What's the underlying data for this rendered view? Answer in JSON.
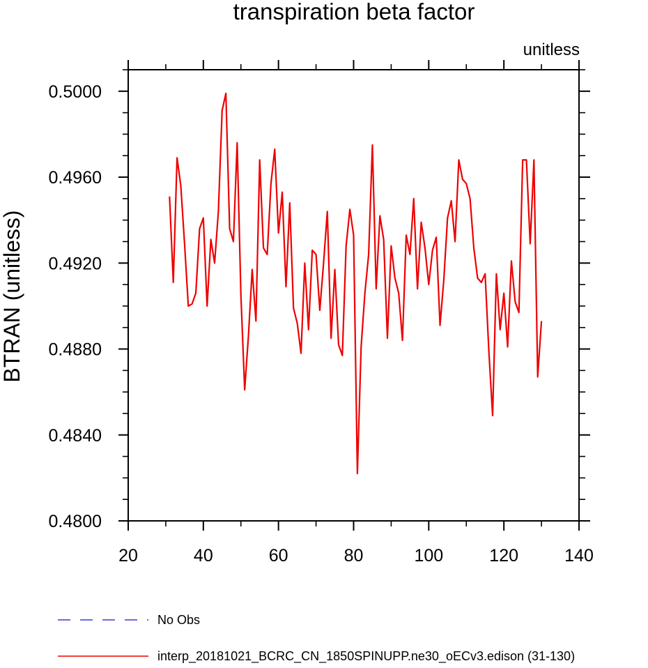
{
  "chart_data": {
    "type": "line",
    "title": "transpiration beta factor",
    "units": "unitless",
    "ylabel": "BTRAN  (unitless)",
    "xlabel": "",
    "xlim": [
      20,
      140
    ],
    "ylim": [
      0.48,
      0.501
    ],
    "xticks": [
      20,
      40,
      60,
      80,
      100,
      120,
      140
    ],
    "xtick_labels": [
      "20",
      "40",
      "60",
      "80",
      "100",
      "120",
      "140"
    ],
    "yticks": [
      0.48,
      0.484,
      0.488,
      0.492,
      0.496,
      0.5
    ],
    "ytick_labels": [
      "0.4800",
      "0.4840",
      "0.4880",
      "0.4920",
      "0.4960",
      "0.5000"
    ],
    "grid": false,
    "legend_placement": "bottom",
    "legend": [
      {
        "label": "No Obs",
        "color": "#3b3bd6",
        "style": "dashed"
      },
      {
        "label": "interp_20181021_BCRC_CN_1850SPINUPP.ne30_oECv3.edison (31-130)",
        "color": "#ee0000",
        "style": "solid"
      }
    ],
    "series": [
      {
        "name": "interp_20181021_BCRC_CN_1850SPINUPP.ne30_oECv3.edison (31-130)",
        "color": "#ee0000",
        "x": [
          31,
          32,
          33,
          34,
          35,
          36,
          37,
          38,
          39,
          40,
          41,
          42,
          43,
          44,
          45,
          46,
          47,
          48,
          49,
          50,
          51,
          52,
          53,
          54,
          55,
          56,
          57,
          58,
          59,
          60,
          61,
          62,
          63,
          64,
          65,
          66,
          67,
          68,
          69,
          70,
          71,
          72,
          73,
          74,
          75,
          76,
          77,
          78,
          79,
          80,
          81,
          82,
          83,
          84,
          85,
          86,
          87,
          88,
          89,
          90,
          91,
          92,
          93,
          94,
          95,
          96,
          97,
          98,
          99,
          100,
          101,
          102,
          103,
          104,
          105,
          106,
          107,
          108,
          109,
          110,
          111,
          112,
          113,
          114,
          115,
          116,
          117,
          118,
          119,
          120,
          121,
          122,
          123,
          124,
          125,
          126,
          127,
          128,
          129,
          130
        ],
        "y": [
          0.4951,
          0.4911,
          0.4969,
          0.4956,
          0.4929,
          0.49,
          0.4901,
          0.4906,
          0.4936,
          0.4941,
          0.49,
          0.4931,
          0.492,
          0.4944,
          0.4991,
          0.4999,
          0.4936,
          0.493,
          0.4976,
          0.4905,
          0.4861,
          0.4886,
          0.4917,
          0.4893,
          0.4968,
          0.4927,
          0.4924,
          0.4957,
          0.4973,
          0.4934,
          0.4953,
          0.4909,
          0.4948,
          0.4899,
          0.4892,
          0.4878,
          0.492,
          0.4889,
          0.4926,
          0.4924,
          0.4898,
          0.492,
          0.4944,
          0.4885,
          0.4917,
          0.4882,
          0.4877,
          0.4928,
          0.4945,
          0.4933,
          0.4822,
          0.4881,
          0.4906,
          0.4924,
          0.4975,
          0.4908,
          0.4942,
          0.4931,
          0.4885,
          0.4928,
          0.4913,
          0.4906,
          0.4884,
          0.4933,
          0.4924,
          0.495,
          0.4908,
          0.4939,
          0.4927,
          0.491,
          0.4926,
          0.4932,
          0.4891,
          0.4912,
          0.4941,
          0.4949,
          0.493,
          0.4968,
          0.4959,
          0.4957,
          0.495,
          0.4927,
          0.4913,
          0.4911,
          0.4915,
          0.4879,
          0.4849,
          0.4915,
          0.4889,
          0.4906,
          0.4881,
          0.4921,
          0.4902,
          0.4897,
          0.4968,
          0.4968,
          0.4929,
          0.4968,
          0.4867,
          0.4893
        ]
      }
    ]
  }
}
